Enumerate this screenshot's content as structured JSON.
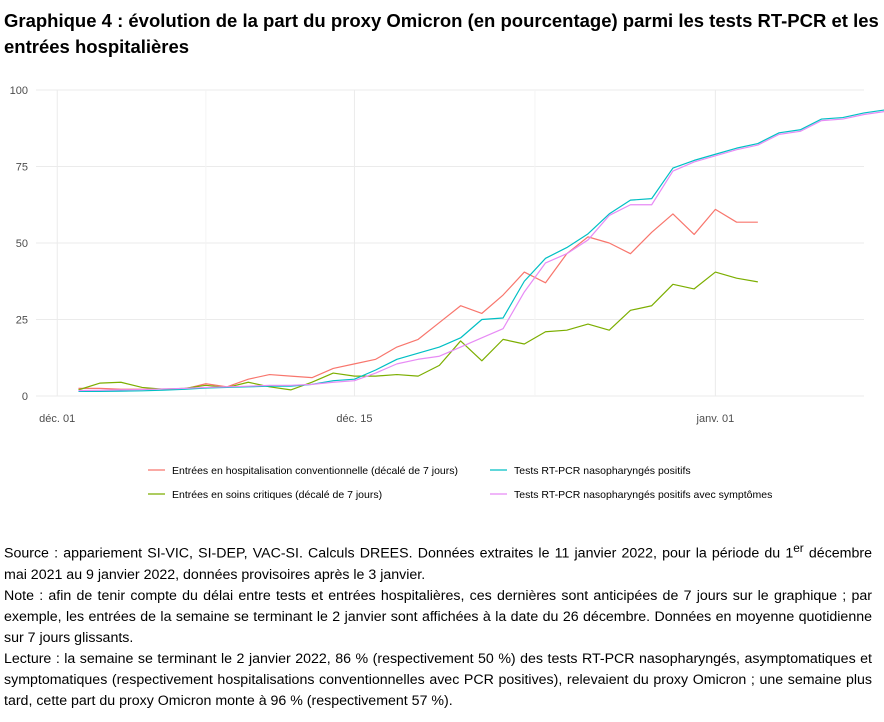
{
  "page": {
    "title": "Graphique 4 : évolution de la part du proxy Omicron (en pourcentage) parmi les tests RT-PCR et les entrées hospitalières",
    "source_text": "Source : appariement SI-VIC, SI-DEP, VAC-SI. Calculs DREES. Données extraites le 11 janvier 2022, pour la période du 1",
    "source_sup": "er",
    "source_text2": " décembre mai 2021 au 9 janvier 2022, données provisoires après le 3 janvier.",
    "note_text": "Note : afin de tenir compte du délai entre tests et entrées hospitalières, ces dernières sont anticipées de 7 jours sur le graphique ; par exemple, les entrées de la semaine se terminant le 2 janvier sont affichées à la date du 26 décembre. Données en moyenne quotidienne sur 7 jours glissants.",
    "reading_text": "Lecture : la semaine se terminant le 2 janvier 2022, 86 % (respectivement 50 %) des tests RT-PCR nasopharyngés, asymptomatiques et symptomatiques (respectivement hospitalisations conventionnelles avec PCR positives), relevaient du proxy Omicron ; une semaine plus tard, cette part du proxy Omicron monte à 96 % (respectivement 57 %)."
  },
  "chart_data": {
    "type": "line",
    "x_start": "2021-12-02",
    "x_tick_labels": [
      "déc. 01",
      "déc. 15",
      "janv. 01"
    ],
    "x_tick_dates": [
      "2021-12-01",
      "2021-12-15",
      "2022-01-01"
    ],
    "ylim": [
      0,
      100
    ],
    "x_range": [
      "2021-11-30",
      "2022-01-08"
    ],
    "y_ticks": [
      0,
      25,
      50,
      75,
      100
    ],
    "grid": true,
    "legend_position": "bottom",
    "series": [
      {
        "name": "Entrées en hospitalisation conventionnelle (décalé de 7 jours)",
        "color": "#f8766d",
        "values": [
          2.5,
          2.5,
          2.2,
          2.2,
          2.3,
          2.3,
          4.0,
          3.0,
          5.5,
          7.0,
          6.5,
          6.0,
          9.0,
          10.5,
          12.0,
          16.0,
          18.5,
          24.0,
          29.5,
          27.0,
          33.0,
          40.5,
          37.0,
          46.5,
          52.0,
          50.0,
          46.5,
          53.5,
          59.5,
          52.8,
          61.0,
          56.8,
          56.8
        ]
      },
      {
        "name": "Entrées en soins critiques (décalé de 7 jours)",
        "color": "#7cae00",
        "values": [
          2.0,
          4.2,
          4.5,
          2.8,
          2.2,
          2.5,
          3.5,
          2.8,
          4.5,
          3.0,
          2.0,
          4.5,
          7.5,
          6.5,
          6.5,
          7.0,
          6.5,
          10.0,
          18.0,
          11.5,
          18.5,
          17.0,
          21.0,
          21.5,
          23.5,
          21.5,
          28.0,
          29.5,
          36.5,
          35.0,
          40.5,
          38.5,
          37.3
        ]
      },
      {
        "name": "Tests RT-PCR nasopharyngés positifs",
        "color": "#00bfc4",
        "values": [
          1.5,
          1.5,
          1.6,
          1.7,
          1.9,
          2.2,
          2.6,
          2.8,
          3.0,
          3.2,
          3.2,
          3.8,
          5.0,
          5.5,
          8.5,
          12.0,
          14.0,
          16.0,
          19.0,
          25.0,
          25.5,
          37.5,
          45.0,
          48.5,
          53.0,
          59.5,
          64.0,
          64.5,
          74.5,
          77.0,
          79.0,
          81.0,
          82.5,
          86.0,
          87.0,
          90.5,
          91.0,
          92.5,
          93.5,
          94.0,
          96.0
        ]
      },
      {
        "name": "Tests RT-PCR nasopharyngés positifs avec symptômes",
        "color": "#e78bf5",
        "values": [
          1.8,
          1.9,
          2.0,
          2.1,
          2.3,
          2.5,
          2.8,
          3.0,
          3.2,
          3.5,
          3.5,
          3.8,
          4.5,
          5.0,
          7.5,
          10.5,
          12.0,
          13.0,
          16.0,
          19.0,
          22.0,
          34.0,
          43.5,
          46.5,
          51.0,
          59.0,
          62.5,
          62.5,
          73.5,
          76.5,
          78.5,
          80.5,
          82.0,
          85.5,
          86.5,
          90.0,
          90.5,
          92.0,
          93.0,
          94.0,
          95.5
        ]
      }
    ]
  }
}
